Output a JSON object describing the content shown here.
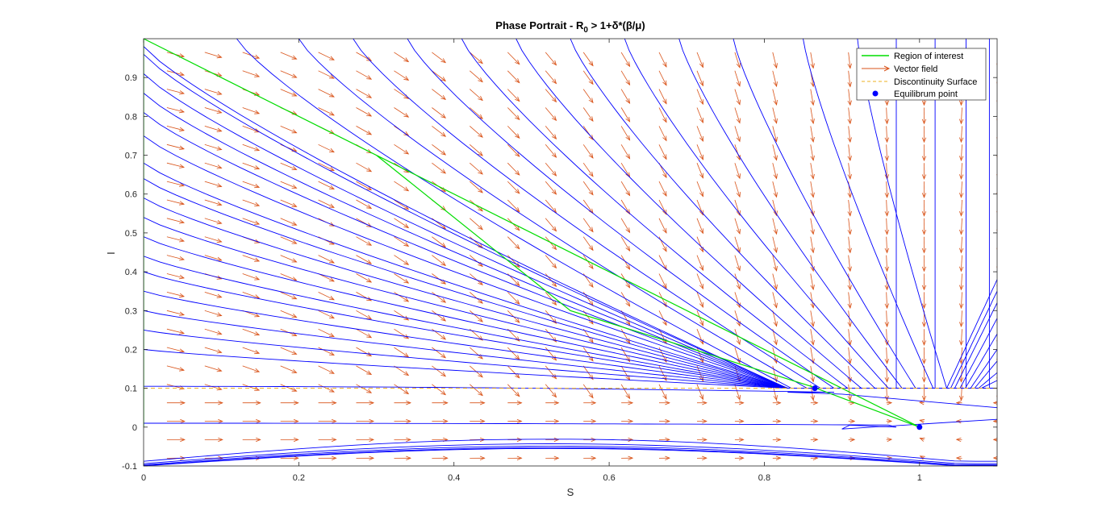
{
  "chart_data": {
    "type": "line",
    "title": {
      "main": "Phase Portrait - R",
      "subscript": "0",
      "rest": " > 1+δ*(β/μ)"
    },
    "xlabel": "S",
    "ylabel": "I",
    "xlim": [
      0,
      1.1
    ],
    "ylim": [
      -0.1,
      1.0
    ],
    "xticks": [
      0,
      0.2,
      0.4,
      0.6,
      0.8,
      1
    ],
    "xtick_labels": [
      "0",
      "0.2",
      "0.4",
      "0.6",
      "0.8",
      "1"
    ],
    "yticks": [
      -0.1,
      0,
      0.1,
      0.2,
      0.3,
      0.4,
      0.5,
      0.6,
      0.7,
      0.8,
      0.9
    ],
    "ytick_labels": [
      "-0.1",
      "0",
      "0.1",
      "0.2",
      "0.3",
      "0.4",
      "0.5",
      "0.6",
      "0.7",
      "0.8",
      "0.9"
    ],
    "grid": false,
    "legend": {
      "placement": "top-right",
      "entries": [
        {
          "label": "Region of interest",
          "style": "line",
          "color": "#00dd00"
        },
        {
          "label": "Vector field",
          "style": "arrow",
          "color": "#d95319"
        },
        {
          "label": "Discontinuity Surface",
          "style": "dashed",
          "color": "#edb120"
        },
        {
          "label": "Equilibrum point",
          "style": "marker",
          "color": "#0000ff"
        }
      ]
    },
    "colors": {
      "region": "#00dd00",
      "vector_field": "#d95319",
      "discontinuity": "#edb120",
      "trajectories": "#0000ff",
      "equilibrium": "#0000ff"
    },
    "region_of_interest": {
      "x": [
        0,
        0,
        1,
        0.86,
        0.55,
        0.3,
        0.1,
        0
      ],
      "y": [
        0,
        1,
        0,
        0.105,
        0.3,
        0.7,
        0.9,
        1
      ]
    },
    "discontinuity_surface": {
      "y": 0.1,
      "x": [
        0,
        1.1
      ]
    },
    "equilibrium_points": [
      {
        "x": 0.865,
        "y": 0.1
      },
      {
        "x": 1.0,
        "y": 0.0
      }
    ],
    "trajectories_upper": {
      "note_start_points_I_at_S0": [
        0.98,
        0.96,
        0.91,
        0.86,
        0.81,
        0.75,
        0.68,
        0.64,
        0.59,
        0.54,
        0.49,
        0.44,
        0.4,
        0.35,
        0.3,
        0.25,
        0.2
      ],
      "end_S_on_discontinuity": 0.83
    },
    "trajectories_top_entry_S": [
      0.12,
      0.2,
      0.27,
      0.34,
      0.41,
      0.48,
      0.55,
      0.62,
      0.69,
      0.76,
      0.85,
      0.92,
      0.97,
      1.02,
      1.06,
      1.09
    ],
    "trajectories_right_I": [
      0.38,
      0.35,
      0.32,
      0.28,
      0.24,
      0.2,
      0.17,
      0.14,
      0.12
    ],
    "trajectories_lower": [
      {
        "I0": 0.105,
        "min_S": 0.88
      },
      {
        "I0": 0.01,
        "min_S": 0.96
      }
    ],
    "trajectories_below_zero": [
      -0.088,
      -0.094,
      -0.097,
      -0.099,
      -0.1
    ]
  }
}
